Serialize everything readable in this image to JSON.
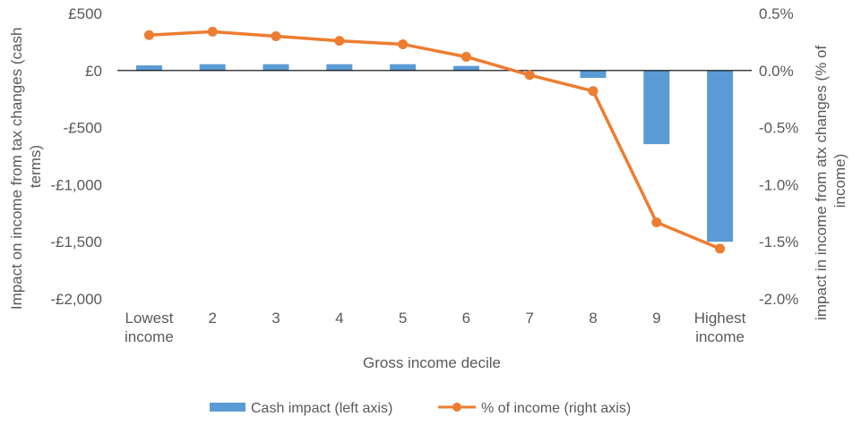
{
  "chart_data": {
    "type": "bar",
    "categories": [
      "Lowest income",
      "2",
      "3",
      "4",
      "5",
      "6",
      "7",
      "8",
      "9",
      "Highest income"
    ],
    "category_lines": [
      [
        "Lowest",
        "income"
      ],
      [
        "2"
      ],
      [
        "3"
      ],
      [
        "4"
      ],
      [
        "5"
      ],
      [
        "6"
      ],
      [
        "7"
      ],
      [
        "8"
      ],
      [
        "9"
      ],
      [
        "Highest",
        "income"
      ]
    ],
    "series": [
      {
        "name": "Cash impact (left axis)",
        "type": "bar",
        "axis": "left",
        "color": "#5B9BD5",
        "values": [
          45,
          55,
          55,
          55,
          55,
          40,
          -5,
          -65,
          -645,
          -1500
        ]
      },
      {
        "name": "% of income (right axis)",
        "type": "line",
        "axis": "right",
        "color": "#ED7D31",
        "values": [
          0.31,
          0.34,
          0.3,
          0.26,
          0.23,
          0.12,
          -0.04,
          -0.18,
          -1.33,
          -1.56
        ]
      }
    ],
    "xlabel": "Gross income decile",
    "ylabel_left": "Impact on income from tax changes (cash terms)",
    "ylabel_left_lines": [
      "Impact on income from tax changes (cash",
      "terms)"
    ],
    "ylabel_right": "impact in income from atx changes (% of income)",
    "ylabel_right_lines": [
      "impact in income from atx changes (% of",
      "income)"
    ],
    "ylim_left": [
      -2000,
      500
    ],
    "ylim_right": [
      -2.0,
      0.5
    ],
    "yticks_left": [
      500,
      0,
      -500,
      -1000,
      -1500,
      -2000
    ],
    "yticks_left_labels": [
      "£500",
      "£0",
      "-£500",
      "-£1,000",
      "-£1,500",
      "-£2,000"
    ],
    "yticks_right": [
      0.5,
      0.0,
      -0.5,
      -1.0,
      -1.5,
      -2.0
    ],
    "yticks_right_labels": [
      "0.5%",
      "0.0%",
      "-0.5%",
      "-1.0%",
      "-1.5%",
      "-2.0%"
    ],
    "grid": false,
    "legend_position": "bottom"
  }
}
